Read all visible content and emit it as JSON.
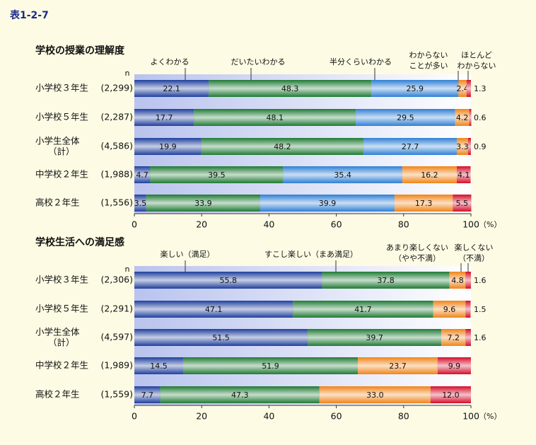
{
  "label": "表1-2-7",
  "chart_data": [
    {
      "type": "bar",
      "stacked": true,
      "title": "学校の授業の理解度",
      "n_header": "n",
      "categories": [
        "小学校３年生",
        "小学校５年生",
        "小学生全体\n（計）",
        "中学校２年生",
        "高校２年生"
      ],
      "sample_sizes": [
        "(2,299)",
        "(2,287)",
        "(4,586)",
        "(1,988)",
        "(1,556)"
      ],
      "series": [
        {
          "name": "よくわかる",
          "color": "#1f3f9c",
          "values": [
            22.1,
            17.7,
            19.9,
            4.7,
            3.5
          ]
        },
        {
          "name": "だいたいわかる",
          "color": "#1f7a34",
          "values": [
            48.3,
            48.1,
            48.2,
            39.5,
            33.9
          ]
        },
        {
          "name": "半分くらいわかる",
          "color": "#2f7fd4",
          "values": [
            25.9,
            29.5,
            27.7,
            35.4,
            39.9
          ]
        },
        {
          "name": "わからない\nことが多い",
          "color": "#f08418",
          "values": [
            2.4,
            4.2,
            3.3,
            16.2,
            17.3
          ]
        },
        {
          "name": "ほとんど\nわからない",
          "color": "#d50d2a",
          "values": [
            1.3,
            0.6,
            0.9,
            4.1,
            5.5
          ]
        }
      ],
      "xlim": [
        0,
        100
      ],
      "xticks": [
        0,
        20,
        40,
        60,
        80,
        100
      ],
      "unit": "（%）"
    },
    {
      "type": "bar",
      "stacked": true,
      "title": "学校生活への満足感",
      "n_header": "n",
      "categories": [
        "小学校３年生",
        "小学校５年生",
        "小学生全体\n（計）",
        "中学校２年生",
        "高校２年生"
      ],
      "sample_sizes": [
        "(2,306)",
        "(2,291)",
        "(4,597)",
        "(1,989)",
        "(1,559)"
      ],
      "series": [
        {
          "name": "楽しい（満足）",
          "color": "#1f3f9c",
          "values": [
            55.8,
            47.1,
            51.5,
            14.5,
            7.7
          ]
        },
        {
          "name": "すこし楽しい（まあ満足）",
          "color": "#1f7a34",
          "values": [
            37.8,
            41.7,
            39.7,
            51.9,
            47.3
          ]
        },
        {
          "name": "あまり楽しくない\n（やや不満）",
          "color": "#f08418",
          "values": [
            4.8,
            9.6,
            7.2,
            23.7,
            33.0
          ],
          "value_labels": [
            "4.8",
            "9.6",
            "7.2",
            "23.7",
            "33.0"
          ]
        },
        {
          "name": "楽しくない\n（不満）",
          "color": "#d50d2a",
          "values": [
            1.6,
            1.5,
            1.6,
            9.9,
            12.0
          ],
          "value_labels": [
            "1.6",
            "1.5",
            "1.6",
            "9.9",
            "12.0"
          ]
        }
      ],
      "xlim": [
        0,
        100
      ],
      "xticks": [
        0,
        20,
        40,
        60,
        80,
        100
      ],
      "unit": "（%）"
    }
  ]
}
